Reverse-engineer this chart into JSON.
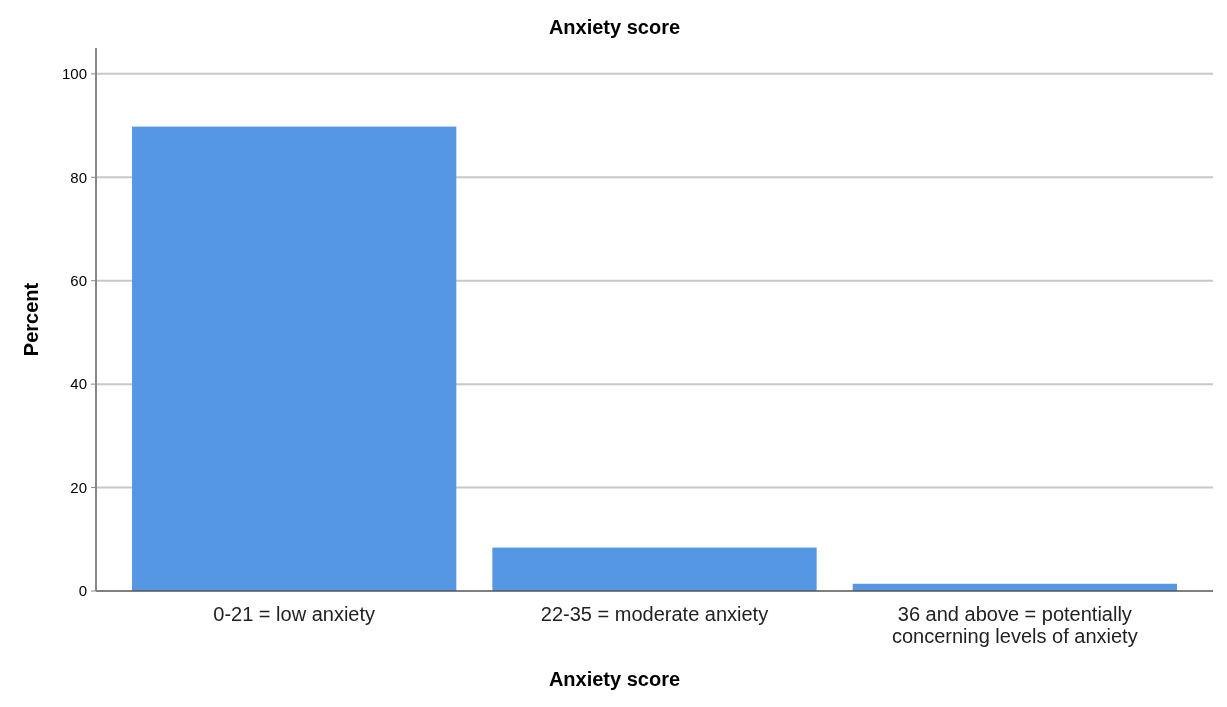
{
  "chart_data": {
    "type": "bar",
    "title": "Anxiety score",
    "xlabel": "Anxiety score",
    "ylabel": "Percent",
    "categories": [
      "0-21 = low anxiety",
      "22-35 = moderate anxiety",
      "36 and above = potentially concerning levels of anxiety"
    ],
    "values": [
      89.8,
      8.4,
      1.4
    ],
    "color": "#5597e3",
    "ylim": [
      0,
      105
    ],
    "yticks": [
      0,
      20,
      40,
      60,
      80,
      100
    ],
    "grid": "y"
  }
}
